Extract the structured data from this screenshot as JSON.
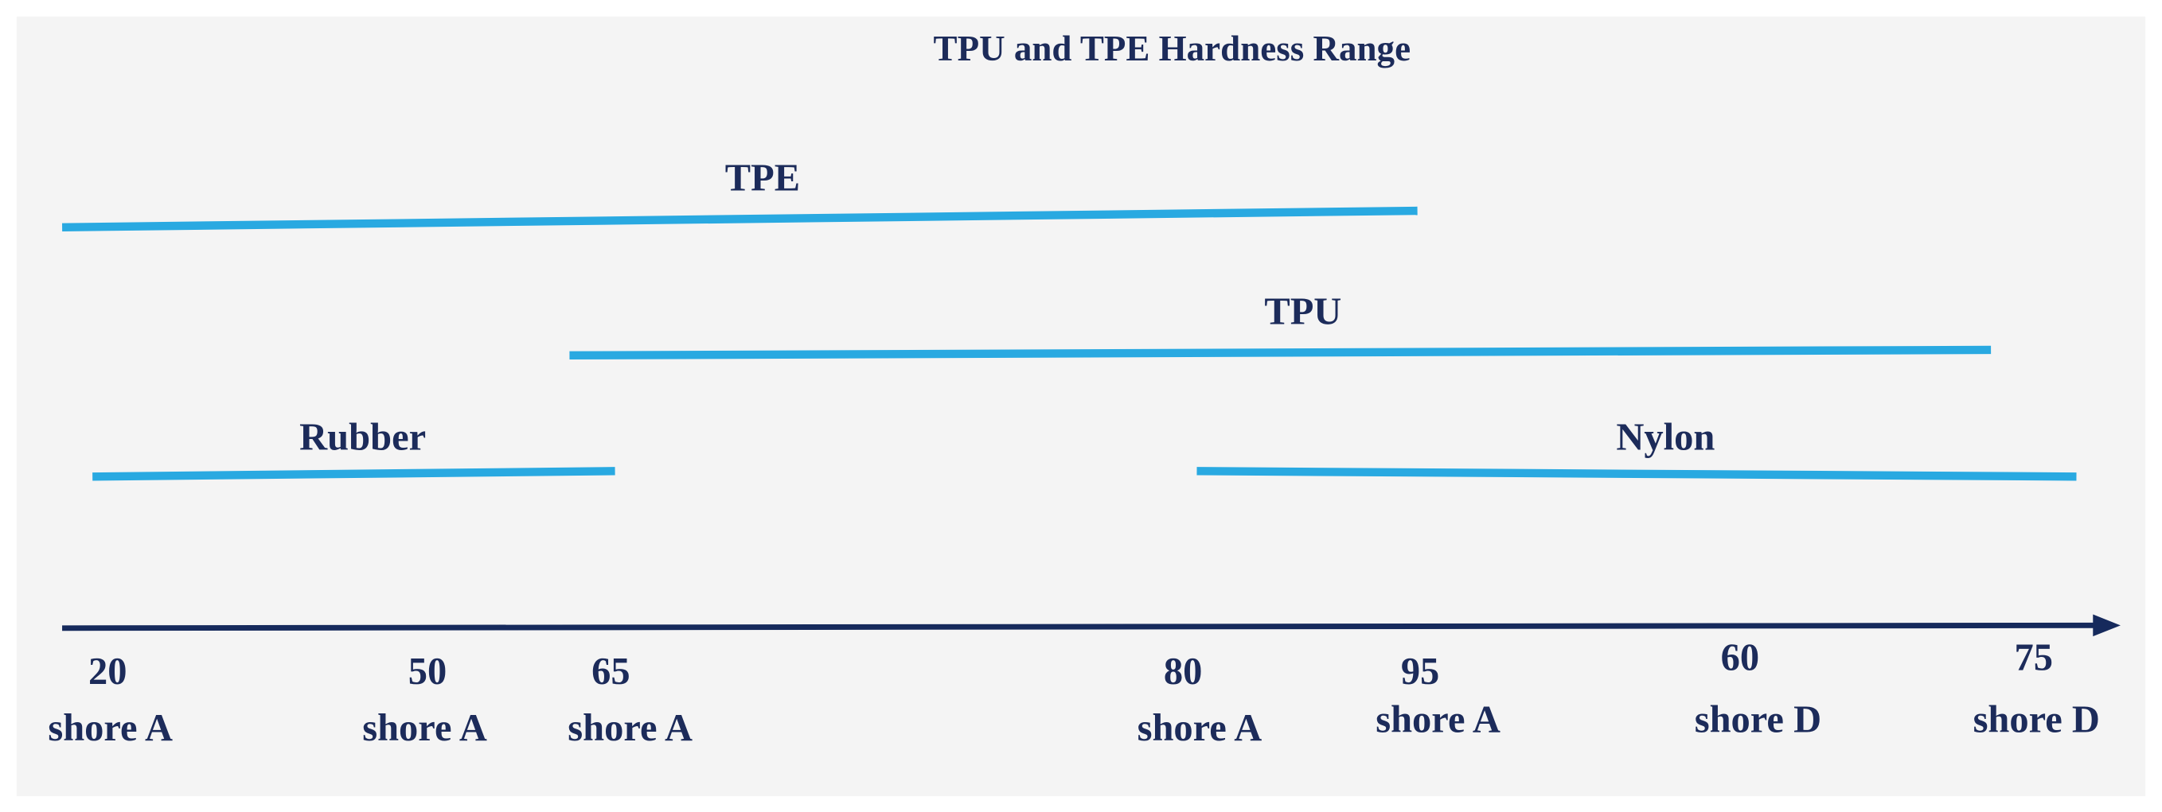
{
  "title": "TPU and TPE Hardness Range",
  "ranges": [
    {
      "label": "TPE"
    },
    {
      "label": "TPU"
    },
    {
      "label": "Rubber"
    },
    {
      "label": "Nylon"
    }
  ],
  "axis": {
    "ticks": [
      {
        "value": "20",
        "unit": "shore A"
      },
      {
        "value": "50",
        "unit": "shore A"
      },
      {
        "value": "65",
        "unit": "shore A"
      },
      {
        "value": "80",
        "unit": "shore A"
      },
      {
        "value": "95",
        "unit": "shore A"
      },
      {
        "value": "60",
        "unit": "shore D"
      },
      {
        "value": "75",
        "unit": "shore D"
      }
    ]
  }
}
